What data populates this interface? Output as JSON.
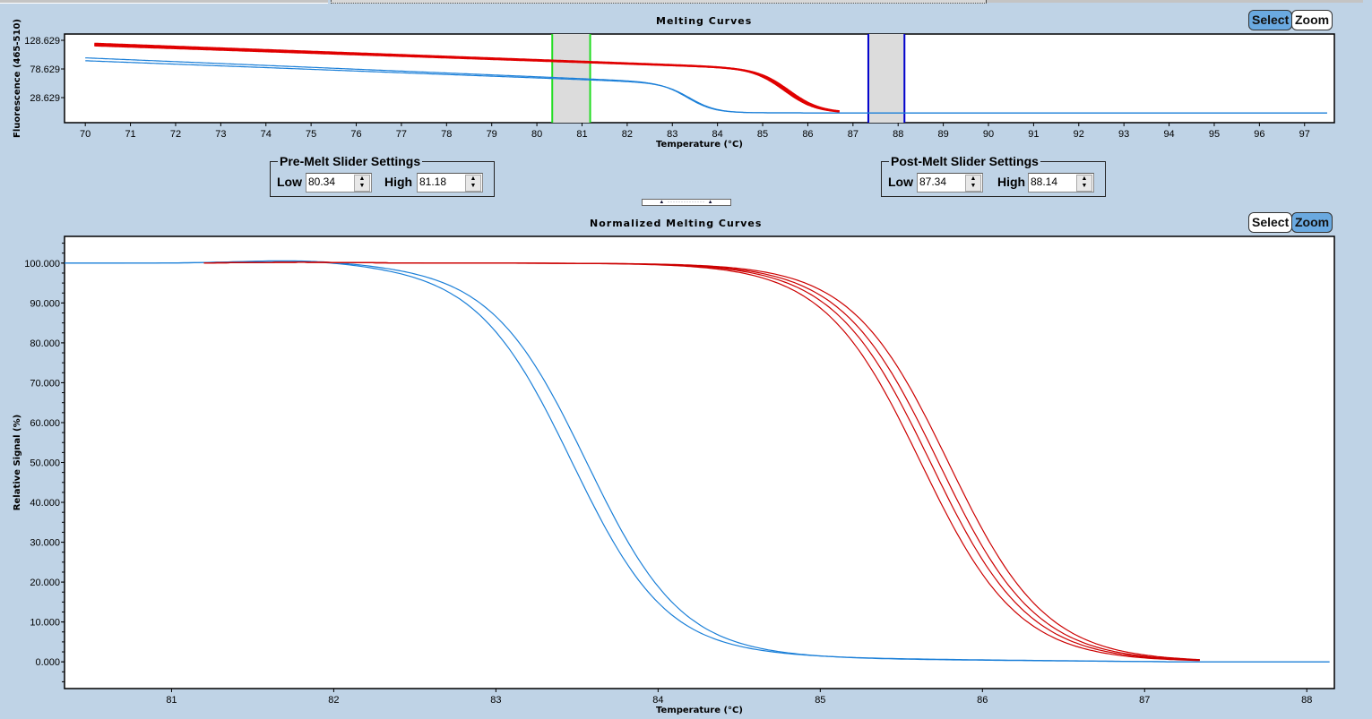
{
  "top_chart": {
    "title": "Melting Curves",
    "buttons": {
      "select": "Select",
      "zoom": "Zoom",
      "active": "select"
    },
    "chart_data": {
      "type": "line",
      "title": "Melting Curves",
      "xlabel": "Temperature (°C)",
      "ylabel": "Fluorescence (465-510)",
      "xlim": [
        69.54,
        97.66
      ],
      "ylim": [
        -15.1,
        139.6
      ],
      "xticks": [
        "70",
        "71",
        "72",
        "73",
        "74",
        "75",
        "76",
        "77",
        "78",
        "79",
        "80",
        "81",
        "82",
        "83",
        "84",
        "85",
        "86",
        "87",
        "88",
        "89",
        "90",
        "91",
        "92",
        "93",
        "94",
        "95",
        "96",
        "97"
      ],
      "yticks": [
        "128.629",
        "78.629",
        "28.629"
      ],
      "series": [
        {
          "name": "red-1",
          "color": "#e00000",
          "x0": 70.2,
          "x1": 86.7,
          "start": 121.5,
          "slope": -2.9,
          "tm": 85.5,
          "w": 0.35,
          "floor": 2.0
        },
        {
          "name": "red-2",
          "color": "#e00000",
          "x0": 70.2,
          "x1": 86.7,
          "start": 119.5,
          "slope": -2.8,
          "tm": 85.55,
          "w": 0.35,
          "floor": 2.0
        },
        {
          "name": "red-3",
          "color": "#e00000",
          "x0": 70.2,
          "x1": 86.7,
          "start": 118.0,
          "slope": -2.7,
          "tm": 85.6,
          "w": 0.35,
          "floor": 2.0
        },
        {
          "name": "blue-1",
          "color": "#1a7fd8",
          "x0": 70.0,
          "x1": 97.5,
          "start": 96.0,
          "slope": -3.3,
          "tm": 83.35,
          "w": 0.3,
          "floor": 2.0
        },
        {
          "name": "blue-2",
          "color": "#1a7fd8",
          "x0": 70.0,
          "x1": 97.5,
          "start": 91.0,
          "slope": -3.0,
          "tm": 83.4,
          "w": 0.3,
          "floor": 2.0
        }
      ],
      "pre_melt_range": [
        80.34,
        81.18
      ],
      "post_melt_range": [
        87.34,
        88.14
      ],
      "pre_color": "#22dd22",
      "post_color": "#0000cc"
    }
  },
  "pre_melt": {
    "legend": "Pre-Melt Slider Settings",
    "low_label": "Low",
    "low_value": "80.34",
    "high_label": "High",
    "high_value": "81.18"
  },
  "post_melt": {
    "legend": "Post-Melt Slider Settings",
    "low_label": "Low",
    "low_value": "87.34",
    "high_label": "High",
    "high_value": "88.14"
  },
  "bottom_chart": {
    "title": "Normalized Melting Curves",
    "buttons": {
      "select": "Select",
      "zoom": "Zoom",
      "active": "zoom"
    },
    "chart_data": {
      "type": "line",
      "title": "Normalized Melting Curves",
      "xlabel": "Temperature (°C)",
      "ylabel": "Relative Signal (%)",
      "xlim": [
        80.34,
        88.17
      ],
      "ylim": [
        -6.7,
        106.7
      ],
      "xticks": [
        "81",
        "82",
        "83",
        "84",
        "85",
        "86",
        "87",
        "88"
      ],
      "yticks": [
        "100.000",
        "90.000",
        "80.000",
        "70.000",
        "60.000",
        "50.000",
        "40.000",
        "30.000",
        "20.000",
        "10.000",
        "0.000"
      ],
      "series": [
        {
          "name": "blue-1",
          "color": "#1a7fd8",
          "x0": 80.34,
          "x1": 88.14,
          "tm": 83.47,
          "w": 0.3,
          "bump": 0.8,
          "tail": 1.0
        },
        {
          "name": "blue-2",
          "color": "#1a7fd8",
          "x0": 80.34,
          "x1": 88.14,
          "tm": 83.56,
          "w": 0.3,
          "bump": 0.8,
          "tail": 0.8
        },
        {
          "name": "red-1",
          "color": "#cc0000",
          "x0": 81.2,
          "x1": 87.34,
          "tm": 85.62,
          "w": 0.3,
          "bump": 0.2,
          "tail": -0.3
        },
        {
          "name": "red-2",
          "color": "#cc0000",
          "x0": 81.2,
          "x1": 87.34,
          "tm": 85.68,
          "w": 0.3,
          "bump": 0.2,
          "tail": -0.3
        },
        {
          "name": "red-3",
          "color": "#cc0000",
          "x0": 81.2,
          "x1": 87.34,
          "tm": 85.73,
          "w": 0.3,
          "bump": 0.2,
          "tail": -0.3
        },
        {
          "name": "red-4",
          "color": "#cc0000",
          "x0": 81.2,
          "x1": 87.34,
          "tm": 85.79,
          "w": 0.3,
          "bump": 0.2,
          "tail": -0.3
        }
      ]
    }
  }
}
